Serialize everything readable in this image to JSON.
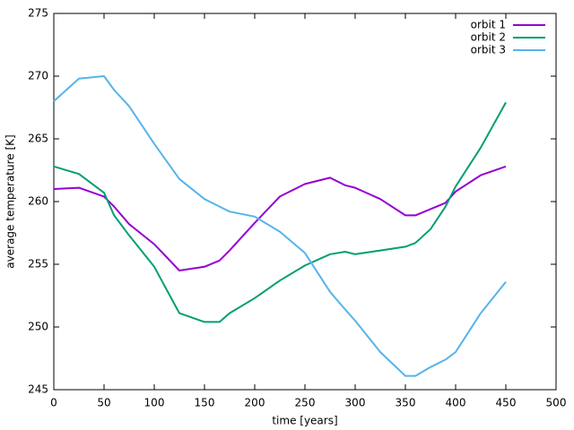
{
  "chart_data": {
    "type": "line",
    "xlabel": "time [years]",
    "ylabel": "average temperature [K]",
    "x": [
      0,
      25,
      50,
      60,
      75,
      100,
      125,
      150,
      165,
      175,
      200,
      225,
      250,
      275,
      290,
      300,
      325,
      350,
      360,
      375,
      390,
      400,
      425,
      450
    ],
    "series": [
      {
        "name": "orbit 1",
        "color": "#9400d3",
        "values": [
          261.0,
          261.1,
          260.4,
          259.6,
          258.2,
          256.6,
          254.5,
          254.8,
          255.3,
          256.1,
          258.3,
          260.4,
          261.4,
          261.9,
          261.3,
          261.1,
          260.2,
          258.9,
          258.9,
          259.4,
          259.9,
          260.8,
          262.1,
          262.8
        ]
      },
      {
        "name": "orbit 2",
        "color": "#009e73",
        "values": [
          262.8,
          262.2,
          260.7,
          258.9,
          257.3,
          254.8,
          251.1,
          250.4,
          250.4,
          251.1,
          252.3,
          253.7,
          254.9,
          255.8,
          256.0,
          255.8,
          256.1,
          256.4,
          256.7,
          257.8,
          259.6,
          261.2,
          264.3,
          267.9
        ]
      },
      {
        "name": "orbit 3",
        "color": "#56b4e9",
        "values": [
          268.0,
          269.8,
          270.0,
          268.9,
          267.6,
          264.6,
          261.8,
          260.2,
          259.6,
          259.2,
          258.8,
          257.6,
          255.9,
          252.8,
          251.4,
          250.5,
          248.0,
          246.1,
          246.1,
          246.8,
          247.4,
          248.0,
          251.1,
          253.6
        ]
      }
    ],
    "xlim": [
      0,
      500
    ],
    "xticks": [
      0,
      50,
      100,
      150,
      200,
      250,
      300,
      350,
      400,
      450,
      500
    ],
    "ylim": [
      245,
      275
    ],
    "yticks": [
      245,
      250,
      255,
      260,
      265,
      270,
      275
    ],
    "grid": false,
    "legend": "top-right"
  }
}
